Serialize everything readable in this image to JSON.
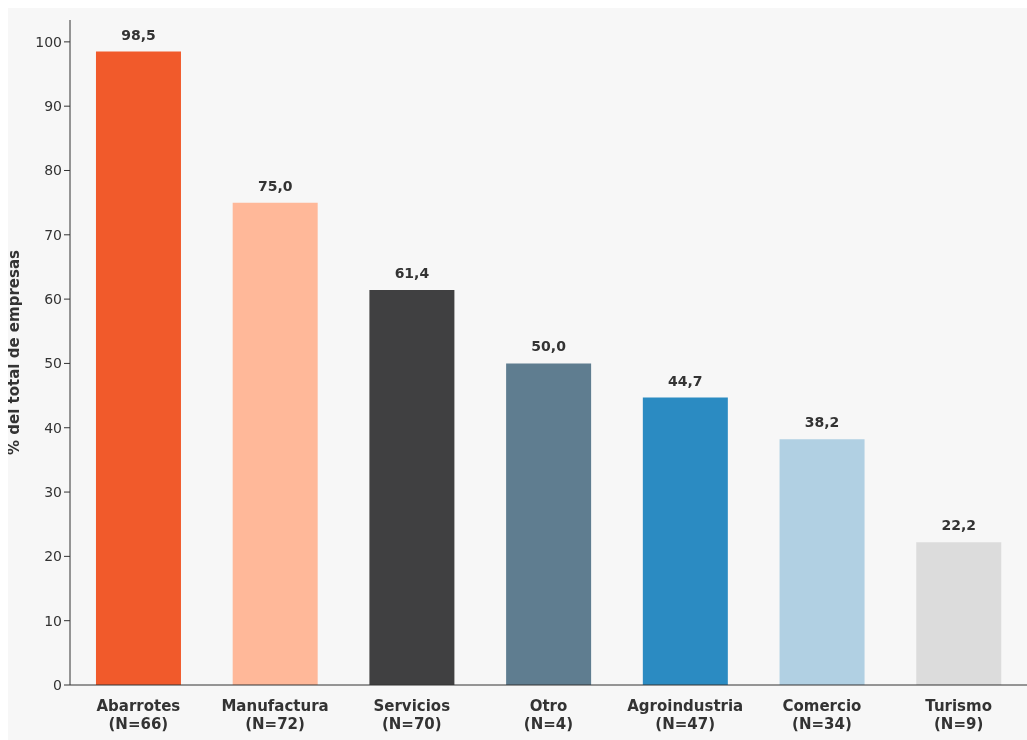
{
  "chart_data": {
    "type": "bar",
    "ylabel": "% del total de empresas",
    "categories": [
      "Abarrotes\n(N=66)",
      "Manufactura\n(N=72)",
      "Servicios\n(N=70)",
      "Otro\n(N=4)",
      "Agroindustria\n(N=47)",
      "Comercio\n(N=34)",
      "Turismo\n(N=9)"
    ],
    "values": [
      98.5,
      75.0,
      61.4,
      50.0,
      44.7,
      38.2,
      22.2
    ],
    "value_labels": [
      "98,5",
      "75,0",
      "61,4",
      "50,0",
      "44,7",
      "38,2",
      "22,2"
    ],
    "colors": [
      "#f15a2b",
      "#ffb899",
      "#404041",
      "#5f7d90",
      "#2b8bc2",
      "#b1d0e3",
      "#dcdcdc"
    ],
    "ylim": [
      0,
      103.4
    ],
    "yticks": [
      0,
      10,
      20,
      30,
      40,
      50,
      60,
      70,
      80,
      90,
      100
    ],
    "grid": false,
    "legend": false
  }
}
